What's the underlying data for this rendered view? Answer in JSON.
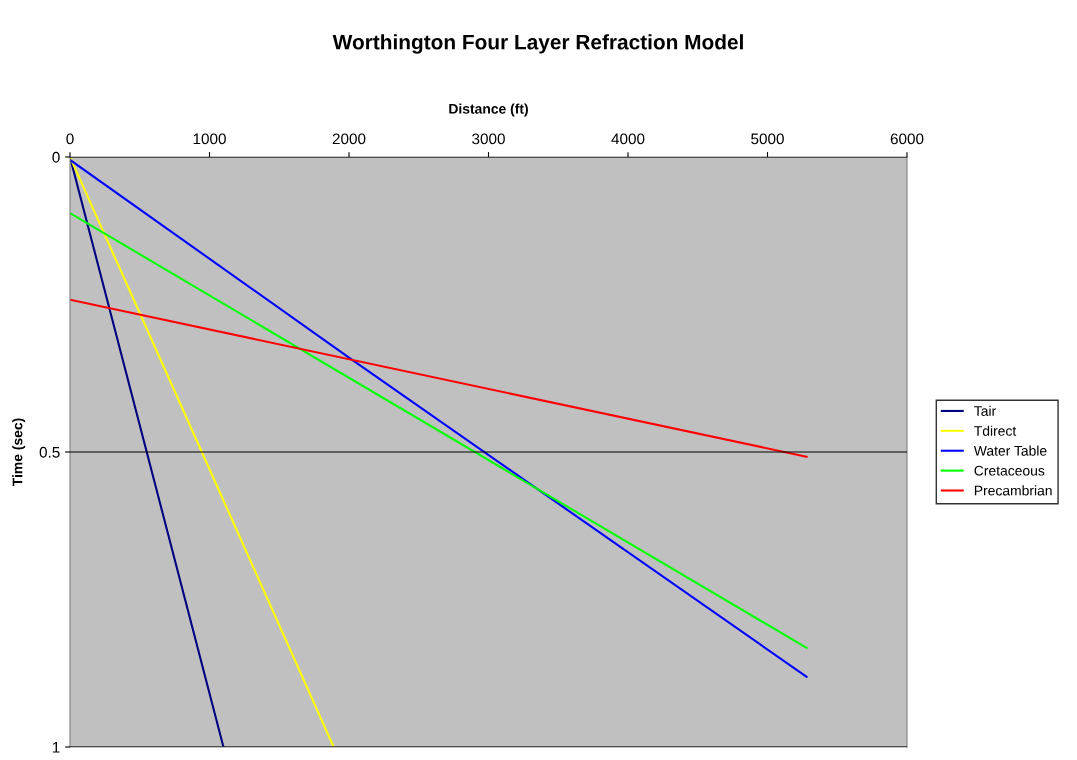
{
  "chart_data": {
    "type": "line",
    "title": "Worthington Four Layer Refraction Model",
    "xlabel": "Distance (ft)",
    "ylabel": "Time (sec)",
    "xlim": [
      0,
      6000
    ],
    "xticks": [
      0,
      1000,
      2000,
      3000,
      4000,
      5000,
      6000
    ],
    "ylim": [
      1,
      0
    ],
    "yticks": [
      0,
      0.5,
      1
    ],
    "grid": "y",
    "legend": "right",
    "marker": "none",
    "line_style": "solid",
    "series": [
      {
        "name": "Tair",
        "color": "#000080",
        "x": [
          0,
          1100
        ],
        "values": [
          0,
          1.0
        ]
      },
      {
        "name": "Tdirect",
        "color": "#ffff00",
        "x": [
          0,
          1890
        ],
        "values": [
          0,
          1.0
        ]
      },
      {
        "name": "Water Table",
        "color": "#0000ff",
        "x": [
          0,
          2000,
          5280
        ],
        "values": [
          0.005,
          0.34,
          0.881
        ]
      },
      {
        "name": "Cretaceous",
        "color": "#00ff00",
        "x": [
          0,
          5280
        ],
        "values": [
          0.095,
          0.832
        ]
      },
      {
        "name": "Precambrian",
        "color": "#ff0000",
        "x": [
          0,
          5280
        ],
        "values": [
          0.242,
          0.508
        ]
      }
    ]
  }
}
